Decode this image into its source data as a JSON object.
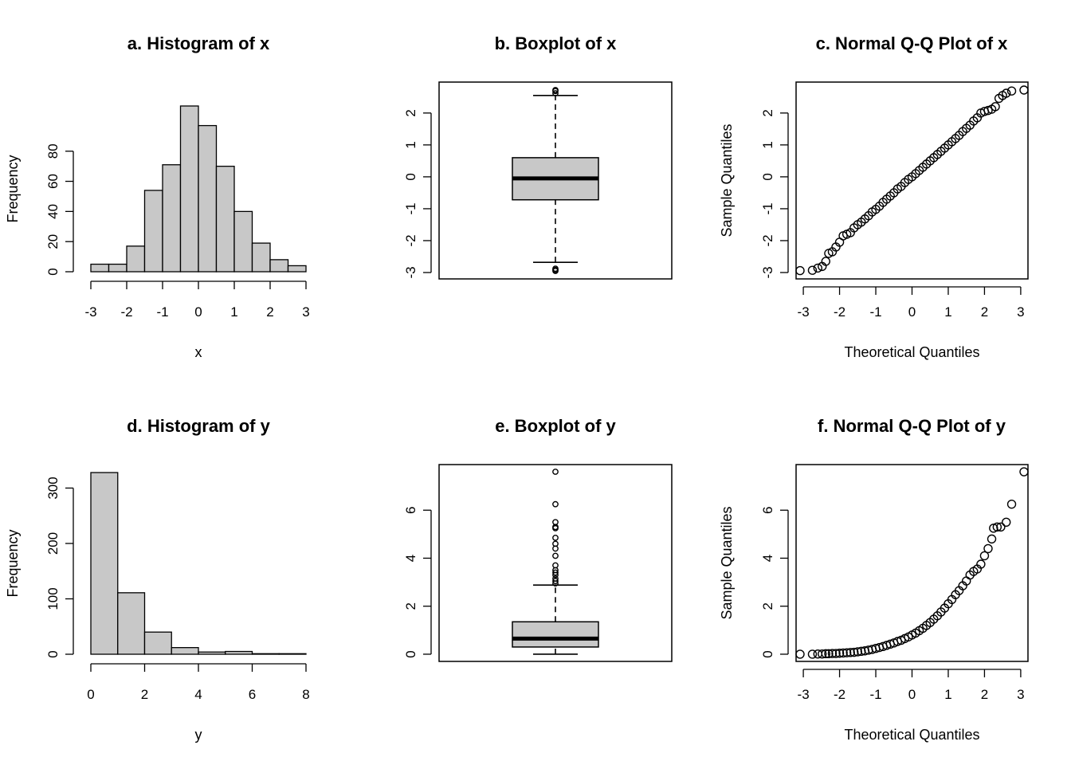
{
  "chart_data": [
    {
      "id": "a",
      "type": "bar",
      "title": "a. Histogram of x",
      "xlabel": "x",
      "ylabel": "Frequency",
      "bin_edges": [
        -3,
        -2.5,
        -2,
        -1.5,
        -1,
        -0.5,
        0,
        0.5,
        1,
        1.5,
        2,
        2.5,
        3
      ],
      "values": [
        5,
        5,
        17,
        54,
        71,
        110,
        97,
        70,
        40,
        19,
        8,
        4
      ],
      "xlim": [
        -3,
        3
      ],
      "ylim": [
        0,
        110
      ],
      "xticks": [
        -3,
        -2,
        -1,
        0,
        1,
        2,
        3
      ],
      "yticks": [
        0,
        20,
        40,
        60,
        80
      ],
      "bar_color": "#c8c8c8"
    },
    {
      "id": "b",
      "type": "box",
      "title": "b. Boxplot of x",
      "ylim": [
        -3.2,
        2.97
      ],
      "yticks": [
        -3,
        -2,
        -1,
        0,
        1,
        2
      ],
      "box": {
        "whisker_low": -2.68,
        "q1": -0.72,
        "median": -0.05,
        "q3": 0.6,
        "whisker_high": 2.55
      },
      "outliers": [
        2.62,
        2.69,
        2.72,
        -2.88,
        -2.92,
        -2.95
      ],
      "box_color": "#c8c8c8"
    },
    {
      "id": "c",
      "type": "scatter",
      "title": "c. Normal Q-Q Plot of x",
      "xlabel": "Theoretical Quantiles",
      "ylabel": "Sample Quantiles",
      "xlim": [
        -3.2,
        3.2
      ],
      "ylim": [
        -3.2,
        2.97
      ],
      "xticks": [
        -3,
        -2,
        -1,
        0,
        1,
        2,
        3
      ],
      "yticks": [
        -3,
        -2,
        -1,
        0,
        1,
        2
      ],
      "points": [
        [
          -3.09,
          -2.94
        ],
        [
          -2.75,
          -2.93
        ],
        [
          -2.6,
          -2.86
        ],
        [
          -2.48,
          -2.81
        ],
        [
          -2.38,
          -2.65
        ],
        [
          -2.3,
          -2.4
        ],
        [
          -2.2,
          -2.35
        ],
        [
          -2.1,
          -2.2
        ],
        [
          -2.0,
          -2.05
        ],
        [
          -1.9,
          -1.85
        ],
        [
          -1.8,
          -1.8
        ],
        [
          -1.7,
          -1.75
        ],
        [
          -1.6,
          -1.6
        ],
        [
          -1.5,
          -1.5
        ],
        [
          -1.4,
          -1.42
        ],
        [
          -1.3,
          -1.32
        ],
        [
          -1.2,
          -1.22
        ],
        [
          -1.1,
          -1.1
        ],
        [
          -1.0,
          -1.02
        ],
        [
          -0.9,
          -0.92
        ],
        [
          -0.8,
          -0.8
        ],
        [
          -0.7,
          -0.7
        ],
        [
          -0.6,
          -0.6
        ],
        [
          -0.5,
          -0.5
        ],
        [
          -0.4,
          -0.38
        ],
        [
          -0.3,
          -0.3
        ],
        [
          -0.2,
          -0.18
        ],
        [
          -0.1,
          -0.08
        ],
        [
          0.0,
          0.0
        ],
        [
          0.1,
          0.1
        ],
        [
          0.2,
          0.2
        ],
        [
          0.3,
          0.3
        ],
        [
          0.4,
          0.4
        ],
        [
          0.5,
          0.5
        ],
        [
          0.6,
          0.6
        ],
        [
          0.7,
          0.7
        ],
        [
          0.8,
          0.8
        ],
        [
          0.9,
          0.9
        ],
        [
          1.0,
          1.0
        ],
        [
          1.1,
          1.1
        ],
        [
          1.2,
          1.2
        ],
        [
          1.3,
          1.3
        ],
        [
          1.4,
          1.42
        ],
        [
          1.5,
          1.52
        ],
        [
          1.6,
          1.62
        ],
        [
          1.7,
          1.75
        ],
        [
          1.8,
          1.85
        ],
        [
          1.9,
          2.0
        ],
        [
          2.0,
          2.05
        ],
        [
          2.1,
          2.08
        ],
        [
          2.2,
          2.12
        ],
        [
          2.3,
          2.2
        ],
        [
          2.4,
          2.46
        ],
        [
          2.5,
          2.55
        ],
        [
          2.6,
          2.62
        ],
        [
          2.75,
          2.69
        ],
        [
          3.09,
          2.72
        ]
      ]
    },
    {
      "id": "d",
      "type": "bar",
      "title": "d. Histogram of y",
      "xlabel": "y",
      "ylabel": "Frequency",
      "bin_edges": [
        0,
        1,
        2,
        3,
        4,
        5,
        6,
        7,
        8
      ],
      "values": [
        328,
        111,
        40,
        12,
        4,
        5,
        1,
        1
      ],
      "xlim": [
        0,
        8
      ],
      "ylim": [
        0,
        328
      ],
      "xticks": [
        0,
        2,
        4,
        6,
        8
      ],
      "yticks": [
        0,
        100,
        200,
        300
      ],
      "bar_color": "#c8c8c8"
    },
    {
      "id": "e",
      "type": "box",
      "title": "e. Boxplot of y",
      "ylim": [
        -0.3,
        7.9
      ],
      "yticks": [
        0,
        2,
        4,
        6
      ],
      "box": {
        "whisker_low": 0.0,
        "q1": 0.3,
        "median": 0.65,
        "q3": 1.35,
        "whisker_high": 2.88
      },
      "outliers": [
        2.95,
        3.05,
        3.15,
        3.3,
        3.4,
        3.5,
        3.7,
        4.1,
        4.4,
        4.6,
        4.85,
        5.25,
        5.3,
        5.5,
        6.25,
        7.6
      ],
      "box_color": "#c8c8c8"
    },
    {
      "id": "f",
      "type": "scatter",
      "title": "f. Normal Q-Q Plot of y",
      "xlabel": "Theoretical Quantiles",
      "ylabel": "Sample Quantiles",
      "xlim": [
        -3.2,
        3.2
      ],
      "ylim": [
        -0.3,
        7.9
      ],
      "xticks": [
        -3,
        -2,
        -1,
        0,
        1,
        2,
        3
      ],
      "yticks": [
        0,
        2,
        4,
        6
      ],
      "points": [
        [
          -3.09,
          0.0
        ],
        [
          -2.75,
          0.0
        ],
        [
          -2.6,
          0.01
        ],
        [
          -2.48,
          0.01
        ],
        [
          -2.38,
          0.02
        ],
        [
          -2.3,
          0.02
        ],
        [
          -2.2,
          0.03
        ],
        [
          -2.1,
          0.03
        ],
        [
          -2.0,
          0.04
        ],
        [
          -1.9,
          0.05
        ],
        [
          -1.8,
          0.06
        ],
        [
          -1.7,
          0.07
        ],
        [
          -1.6,
          0.08
        ],
        [
          -1.5,
          0.1
        ],
        [
          -1.4,
          0.12
        ],
        [
          -1.3,
          0.14
        ],
        [
          -1.2,
          0.17
        ],
        [
          -1.1,
          0.2
        ],
        [
          -1.0,
          0.24
        ],
        [
          -0.9,
          0.28
        ],
        [
          -0.8,
          0.32
        ],
        [
          -0.7,
          0.37
        ],
        [
          -0.6,
          0.42
        ],
        [
          -0.5,
          0.47
        ],
        [
          -0.4,
          0.53
        ],
        [
          -0.3,
          0.58
        ],
        [
          -0.2,
          0.65
        ],
        [
          -0.1,
          0.72
        ],
        [
          0.0,
          0.8
        ],
        [
          0.1,
          0.88
        ],
        [
          0.2,
          0.98
        ],
        [
          0.3,
          1.08
        ],
        [
          0.4,
          1.2
        ],
        [
          0.5,
          1.32
        ],
        [
          0.6,
          1.46
        ],
        [
          0.7,
          1.6
        ],
        [
          0.8,
          1.76
        ],
        [
          0.9,
          1.92
        ],
        [
          1.0,
          2.1
        ],
        [
          1.1,
          2.28
        ],
        [
          1.2,
          2.48
        ],
        [
          1.3,
          2.65
        ],
        [
          1.4,
          2.85
        ],
        [
          1.5,
          3.05
        ],
        [
          1.6,
          3.3
        ],
        [
          1.7,
          3.45
        ],
        [
          1.8,
          3.55
        ],
        [
          1.9,
          3.75
        ],
        [
          2.0,
          4.1
        ],
        [
          2.1,
          4.4
        ],
        [
          2.2,
          4.8
        ],
        [
          2.25,
          5.25
        ],
        [
          2.35,
          5.3
        ],
        [
          2.45,
          5.3
        ],
        [
          2.6,
          5.5
        ],
        [
          2.75,
          6.25
        ],
        [
          3.09,
          7.6
        ]
      ]
    }
  ]
}
